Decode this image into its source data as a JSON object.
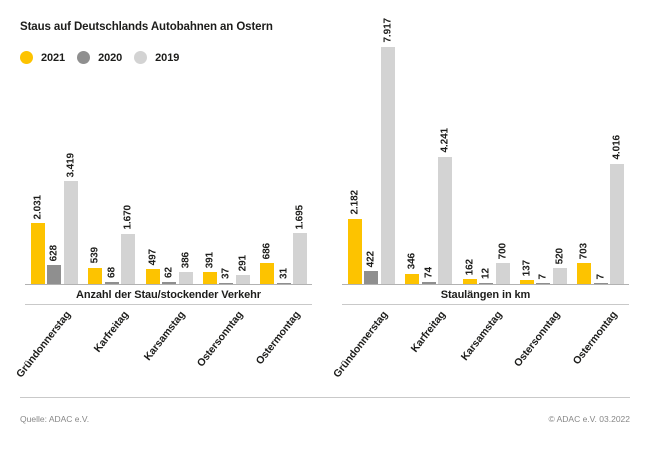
{
  "title": "Staus auf Deutschlands Autobahnen an Ostern",
  "legend": [
    {
      "label": "2021",
      "color": "#FDC300"
    },
    {
      "label": "2020",
      "color": "#8F8F8F"
    },
    {
      "label": "2019",
      "color": "#D3D3D3"
    }
  ],
  "chart_data": [
    {
      "type": "bar",
      "title": "Anzahl der Stau/stockender Verkehr",
      "categories": [
        "Gründonnerstag",
        "Karfreitag",
        "Karsamstag",
        "Ostersonntag",
        "Ostermontag"
      ],
      "series": [
        {
          "name": "2021",
          "color": "#FDC300",
          "values": [
            2031,
            539,
            497,
            391,
            686
          ]
        },
        {
          "name": "2020",
          "color": "#8F8F8F",
          "values": [
            628,
            68,
            62,
            37,
            31
          ]
        },
        {
          "name": "2019",
          "color": "#D3D3D3",
          "values": [
            3419,
            1670,
            386,
            291,
            1695
          ]
        }
      ],
      "value_labels": [
        [
          "2.031",
          "539",
          "497",
          "391",
          "686"
        ],
        [
          "628",
          "68",
          "62",
          "37",
          "31"
        ],
        [
          "3.419",
          "1.670",
          "386",
          "291",
          "1.695"
        ]
      ],
      "grid": false,
      "axes": "none-direct-labels",
      "legend_position": "top-left-shared"
    },
    {
      "type": "bar",
      "title": "Staulängen in km",
      "categories": [
        "Gründonnerstag",
        "Karfreitag",
        "Karsamstag",
        "Ostersonntag",
        "Ostermontag"
      ],
      "series": [
        {
          "name": "2021",
          "color": "#FDC300",
          "values": [
            2182,
            346,
            162,
            137,
            703
          ]
        },
        {
          "name": "2020",
          "color": "#8F8F8F",
          "values": [
            422,
            74,
            12,
            7,
            7
          ]
        },
        {
          "name": "2019",
          "color": "#D3D3D3",
          "values": [
            7917,
            4241,
            700,
            520,
            4016
          ]
        }
      ],
      "value_labels": [
        [
          "2.182",
          "346",
          "162",
          "137",
          "703"
        ],
        [
          "422",
          "74",
          "12",
          "7",
          "7"
        ],
        [
          "7.917",
          "4.241",
          "700",
          "520",
          "4.016"
        ]
      ],
      "grid": false,
      "axes": "none-direct-labels",
      "legend_position": "top-left-shared"
    }
  ],
  "footer": {
    "source": "Quelle: ADAC e.V.",
    "copyright": "© ADAC e.V. 03.2022"
  }
}
